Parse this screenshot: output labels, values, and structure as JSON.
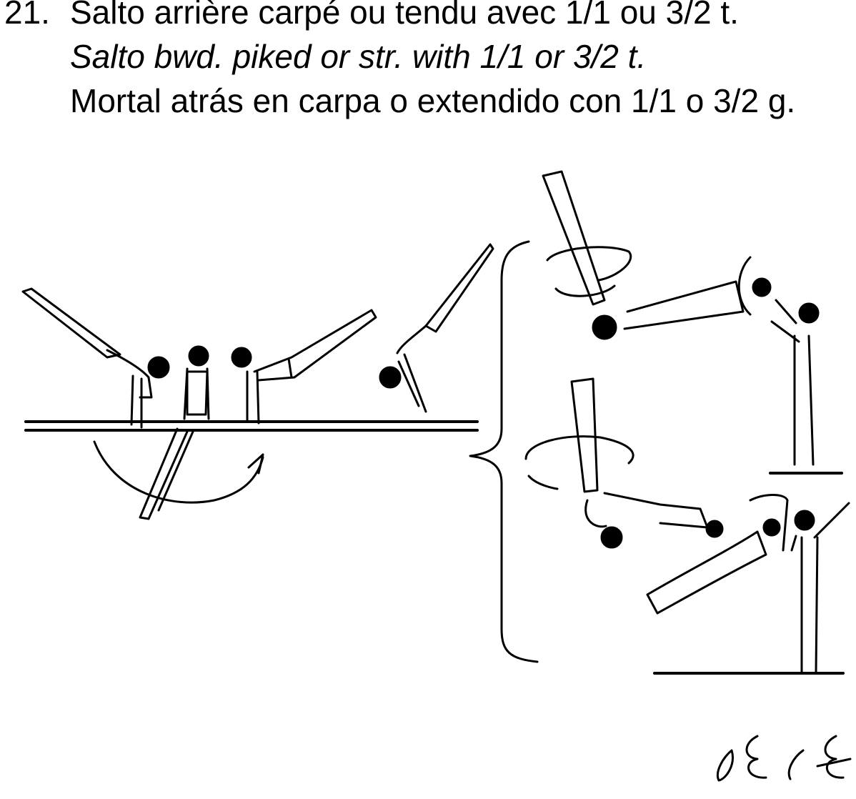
{
  "title": {
    "number": "21.",
    "french": "Salto arrière carpé ou tendu avec 1/1 ou 3/2 t.",
    "english": "Salto bwd. piked or str. with 1/1 or 3/2 t.",
    "spanish": "Mortal atrás en carpa o extendido con 1/1 o 3/2 g."
  },
  "apparatus": "parallel bars",
  "value_symbols": [
    "E-value symbol",
    "E-value symbol with strike"
  ]
}
